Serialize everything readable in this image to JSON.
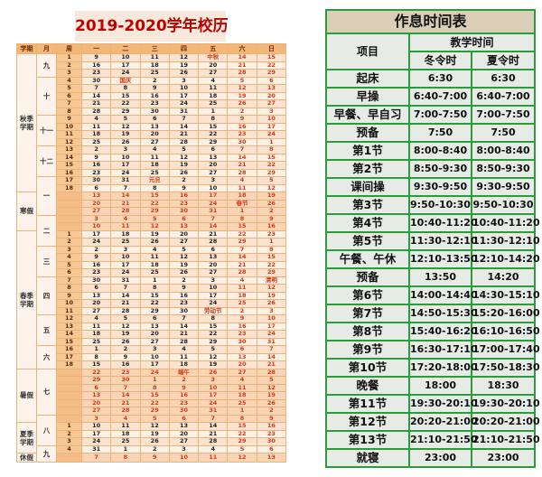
{
  "calendar": {
    "title": "2019-2020学年校历",
    "headers": [
      "学期",
      "月",
      "周",
      "一",
      "二",
      "三",
      "四",
      "五",
      "六",
      "日"
    ],
    "semesters": [
      {
        "label": "秋季学期",
        "rows": 18
      },
      {
        "label": "寒假",
        "rows": 5
      },
      {
        "label": "春季学期",
        "rows": 18
      },
      {
        "label": "暑假",
        "rows": 7
      },
      {
        "label": "夏季学期",
        "rows": 4
      },
      {
        "label": "休假",
        "rows": 1
      }
    ],
    "months": [
      {
        "label": "九",
        "rows": 3
      },
      {
        "label": "十",
        "rows": 5
      },
      {
        "label": "十一",
        "rows": 4
      },
      {
        "label": "十二",
        "rows": 4
      },
      {
        "label": "一",
        "rows": 5
      },
      {
        "label": "二",
        "rows": 4
      },
      {
        "label": "三",
        "rows": 4
      },
      {
        "label": "四",
        "rows": 5
      },
      {
        "label": "五",
        "rows": 4
      },
      {
        "label": "六",
        "rows": 3
      },
      {
        "label": "七",
        "rows": 6
      },
      {
        "label": "八",
        "rows": 4
      },
      {
        "label": "九",
        "rows": 2
      }
    ],
    "weeks": [
      {
        "week": "1",
        "days": [
          "9",
          "10",
          "11",
          "12",
          "中秋",
          "14",
          "15"
        ]
      },
      {
        "week": "2",
        "days": [
          "16",
          "17",
          "18",
          "19",
          "20",
          "21",
          "22"
        ]
      },
      {
        "week": "3",
        "days": [
          "23",
          "24",
          "25",
          "26",
          "27",
          "28",
          "29"
        ]
      },
      {
        "week": "4",
        "days": [
          "30",
          "国庆",
          "2",
          "3",
          "4",
          "5",
          "6"
        ]
      },
      {
        "week": "5",
        "days": [
          "7",
          "8",
          "9",
          "10",
          "11",
          "12",
          "13"
        ]
      },
      {
        "week": "6",
        "days": [
          "14",
          "15",
          "16",
          "17",
          "18",
          "19",
          "20"
        ]
      },
      {
        "week": "7",
        "days": [
          "21",
          "22",
          "23",
          "24",
          "25",
          "26",
          "27"
        ]
      },
      {
        "week": "8",
        "days": [
          "28",
          "29",
          "30",
          "31",
          "1",
          "2",
          "3"
        ]
      },
      {
        "week": "9",
        "days": [
          "4",
          "5",
          "6",
          "7",
          "8",
          "9",
          "10"
        ]
      },
      {
        "week": "10",
        "days": [
          "11",
          "12",
          "13",
          "14",
          "15",
          "16",
          "17"
        ]
      },
      {
        "week": "11",
        "days": [
          "18",
          "19",
          "20",
          "21",
          "22",
          "23",
          "24"
        ]
      },
      {
        "week": "12",
        "days": [
          "25",
          "26",
          "27",
          "28",
          "29",
          "30",
          "1"
        ]
      },
      {
        "week": "13",
        "days": [
          "2",
          "3",
          "4",
          "5",
          "6",
          "7",
          "8"
        ]
      },
      {
        "week": "14",
        "days": [
          "9",
          "10",
          "11",
          "12",
          "13",
          "14",
          "15"
        ]
      },
      {
        "week": "15",
        "days": [
          "16",
          "17",
          "18",
          "19",
          "20",
          "21",
          "22"
        ]
      },
      {
        "week": "16",
        "days": [
          "23",
          "24",
          "25",
          "26",
          "27",
          "28",
          "29"
        ]
      },
      {
        "week": "17",
        "days": [
          "30",
          "31",
          "元旦",
          "2",
          "3",
          "4",
          "5"
        ]
      },
      {
        "week": "18",
        "days": [
          "6",
          "7",
          "8",
          "9",
          "10",
          "11",
          "12"
        ]
      },
      {
        "week": "",
        "vacation": true,
        "days": [
          "13",
          "14",
          "15",
          "16",
          "17",
          "18",
          "19"
        ]
      },
      {
        "week": "",
        "vacation": true,
        "days": [
          "20",
          "21",
          "22",
          "23",
          "24",
          "春节",
          "26"
        ]
      },
      {
        "week": "",
        "vacation": true,
        "days": [
          "27",
          "28",
          "29",
          "30",
          "31",
          "1",
          "2"
        ]
      },
      {
        "week": "",
        "vacation": true,
        "days": [
          "3",
          "4",
          "5",
          "6",
          "7",
          "8",
          "9"
        ]
      },
      {
        "week": "",
        "vacation": true,
        "days": [
          "10",
          "11",
          "12",
          "13",
          "14",
          "15",
          "16"
        ]
      },
      {
        "week": "1",
        "days": [
          "17",
          "18",
          "19",
          "20",
          "21",
          "22",
          "23"
        ]
      },
      {
        "week": "2",
        "days": [
          "24",
          "25",
          "26",
          "27",
          "28",
          "29",
          "1"
        ]
      },
      {
        "week": "3",
        "days": [
          "2",
          "3",
          "4",
          "5",
          "6",
          "7",
          "8"
        ]
      },
      {
        "week": "4",
        "days": [
          "9",
          "10",
          "11",
          "12",
          "13",
          "14",
          "15"
        ]
      },
      {
        "week": "5",
        "days": [
          "16",
          "17",
          "18",
          "19",
          "20",
          "21",
          "22"
        ]
      },
      {
        "week": "6",
        "days": [
          "23",
          "24",
          "25",
          "26",
          "27",
          "28",
          "29"
        ]
      },
      {
        "week": "7",
        "days": [
          "30",
          "31",
          "1",
          "2",
          "3",
          "4",
          "清明"
        ]
      },
      {
        "week": "8",
        "days": [
          "6",
          "7",
          "8",
          "9",
          "10",
          "11",
          "12"
        ]
      },
      {
        "week": "9",
        "days": [
          "13",
          "14",
          "15",
          "16",
          "17",
          "18",
          "19"
        ]
      },
      {
        "week": "10",
        "days": [
          "20",
          "21",
          "22",
          "23",
          "24",
          "25",
          "26"
        ]
      },
      {
        "week": "11",
        "days": [
          "27",
          "28",
          "29",
          "30",
          "劳动节",
          "2",
          "3"
        ]
      },
      {
        "week": "12",
        "days": [
          "4",
          "5",
          "6",
          "7",
          "8",
          "9",
          "10"
        ]
      },
      {
        "week": "13",
        "days": [
          "11",
          "12",
          "13",
          "14",
          "15",
          "16",
          "17"
        ]
      },
      {
        "week": "14",
        "days": [
          "18",
          "19",
          "20",
          "21",
          "22",
          "23",
          "24"
        ]
      },
      {
        "week": "15",
        "days": [
          "25",
          "26",
          "27",
          "28",
          "29",
          "30",
          "31"
        ]
      },
      {
        "week": "16",
        "days": [
          "1",
          "2",
          "3",
          "4",
          "5",
          "6",
          "7"
        ]
      },
      {
        "week": "17",
        "days": [
          "8",
          "9",
          "10",
          "11",
          "12",
          "13",
          "14"
        ]
      },
      {
        "week": "18",
        "days": [
          "15",
          "16",
          "17",
          "18",
          "19",
          "20",
          "21"
        ]
      },
      {
        "week": "",
        "vacation": true,
        "days": [
          "22",
          "23",
          "24",
          "端午",
          "26",
          "27",
          "28"
        ]
      },
      {
        "week": "",
        "vacation": true,
        "days": [
          "29",
          "30",
          "1",
          "2",
          "3",
          "4",
          "5"
        ]
      },
      {
        "week": "",
        "vacation": true,
        "days": [
          "6",
          "7",
          "8",
          "9",
          "10",
          "11",
          "12"
        ]
      },
      {
        "week": "",
        "vacation": true,
        "days": [
          "13",
          "14",
          "15",
          "16",
          "17",
          "18",
          "19"
        ]
      },
      {
        "week": "",
        "vacation": true,
        "days": [
          "20",
          "21",
          "22",
          "23",
          "24",
          "25",
          "26"
        ]
      },
      {
        "week": "",
        "vacation": true,
        "days": [
          "27",
          "28",
          "29",
          "30",
          "31",
          "1",
          "2"
        ]
      },
      {
        "week": "",
        "vacation": true,
        "days": [
          "3",
          "4",
          "5",
          "6",
          "7",
          "8",
          "9"
        ]
      },
      {
        "week": "1",
        "days": [
          "10",
          "11",
          "12",
          "13",
          "14",
          "15",
          "16"
        ]
      },
      {
        "week": "2",
        "days": [
          "17",
          "18",
          "19",
          "20",
          "21",
          "22",
          "23"
        ]
      },
      {
        "week": "3",
        "days": [
          "24",
          "25",
          "26",
          "27",
          "28",
          "29",
          "30"
        ]
      },
      {
        "week": "4",
        "days": [
          "31",
          "1",
          "2",
          "3",
          "4",
          "5",
          "6"
        ]
      },
      {
        "week": "",
        "vacation": true,
        "days": [
          "7",
          "8",
          "9",
          "10",
          "11",
          "12",
          "13"
        ]
      }
    ]
  },
  "schedule": {
    "title": "作息时间表",
    "item_header": "项目",
    "group_header": "教学时间",
    "winter_header": "冬令时",
    "summer_header": "夏令时",
    "rows": [
      {
        "item": "起床",
        "winter": "6:30",
        "summer": "6:30"
      },
      {
        "item": "早操",
        "winter": "6:40-7:00",
        "summer": "6:40-7:00"
      },
      {
        "item": "早餐、早自习",
        "winter": "7:00-7:50",
        "summer": "7:00-7:50"
      },
      {
        "item": "预备",
        "winter": "7:50",
        "summer": "7:50"
      },
      {
        "item": "第1节",
        "winter": "8:00-8:40",
        "summer": "8:00-8:40"
      },
      {
        "item": "第2节",
        "winter": "8:50-9:30",
        "summer": "8:50-9:30"
      },
      {
        "item": "课间操",
        "winter": "9:30-9:50",
        "summer": "9:30-9:50"
      },
      {
        "item": "第3节",
        "winter": "9:50-10:30",
        "summer": "9:50-10:30"
      },
      {
        "item": "第4节",
        "winter": "10:40-11:20",
        "summer": "10:40-11:20"
      },
      {
        "item": "第5节",
        "winter": "11:30-12:10",
        "summer": "11:30-12:10"
      },
      {
        "item": "午餐、午休",
        "winter": "12:10-13:50",
        "summer": "12:10-14:20"
      },
      {
        "item": "预备",
        "winter": "13:50",
        "summer": "14:20"
      },
      {
        "item": "第6节",
        "winter": "14:00-14:40",
        "summer": "14:30-15:10"
      },
      {
        "item": "第7节",
        "winter": "14:50-15:30",
        "summer": "15:20-16:00"
      },
      {
        "item": "第8节",
        "winter": "15:40-16:20",
        "summer": "16:10-16:50"
      },
      {
        "item": "第9节",
        "winter": "16:30-17:10",
        "summer": "17:00-17:40"
      },
      {
        "item": "第10节",
        "winter": "17:20-18:00",
        "summer": "17:50-18:30"
      },
      {
        "item": "晚餐",
        "winter": "18:00",
        "summer": "18:30"
      },
      {
        "item": "第11节",
        "winter": "19:30-20:10",
        "summer": "19:30-20:10"
      },
      {
        "item": "第12节",
        "winter": "20:20-21:00",
        "summer": "20:20-21:00"
      },
      {
        "item": "第13节",
        "winter": "21:10-21:50",
        "summer": "21:10-21:50"
      },
      {
        "item": "就寝",
        "winter": "23:00",
        "summer": "23:00"
      }
    ]
  }
}
